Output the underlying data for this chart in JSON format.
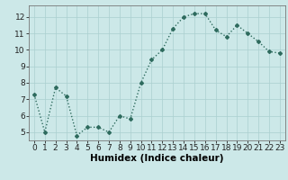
{
  "x": [
    0,
    1,
    2,
    3,
    4,
    5,
    6,
    7,
    8,
    9,
    10,
    11,
    12,
    13,
    14,
    15,
    16,
    17,
    18,
    19,
    20,
    21,
    22,
    23
  ],
  "y": [
    7.3,
    5.0,
    7.7,
    7.2,
    4.8,
    5.3,
    5.3,
    5.0,
    6.0,
    5.8,
    8.0,
    9.4,
    10.0,
    11.3,
    12.0,
    12.2,
    12.2,
    11.2,
    10.8,
    11.5,
    11.0,
    10.5,
    9.9,
    9.8
  ],
  "xlabel": "Humidex (Indice chaleur)",
  "ylim": [
    4.5,
    12.7
  ],
  "xlim": [
    -0.5,
    23.5
  ],
  "yticks": [
    5,
    6,
    7,
    8,
    9,
    10,
    11,
    12
  ],
  "xticks": [
    0,
    1,
    2,
    3,
    4,
    5,
    6,
    7,
    8,
    9,
    10,
    11,
    12,
    13,
    14,
    15,
    16,
    17,
    18,
    19,
    20,
    21,
    22,
    23
  ],
  "line_color": "#2e6b5e",
  "marker": "D",
  "marker_size": 2.0,
  "bg_color": "#cce8e8",
  "grid_major_color": "#aacfcf",
  "grid_minor_color": "#bbdcdc",
  "xlabel_fontsize": 7.5,
  "tick_fontsize": 6.5,
  "line_width": 1.0
}
